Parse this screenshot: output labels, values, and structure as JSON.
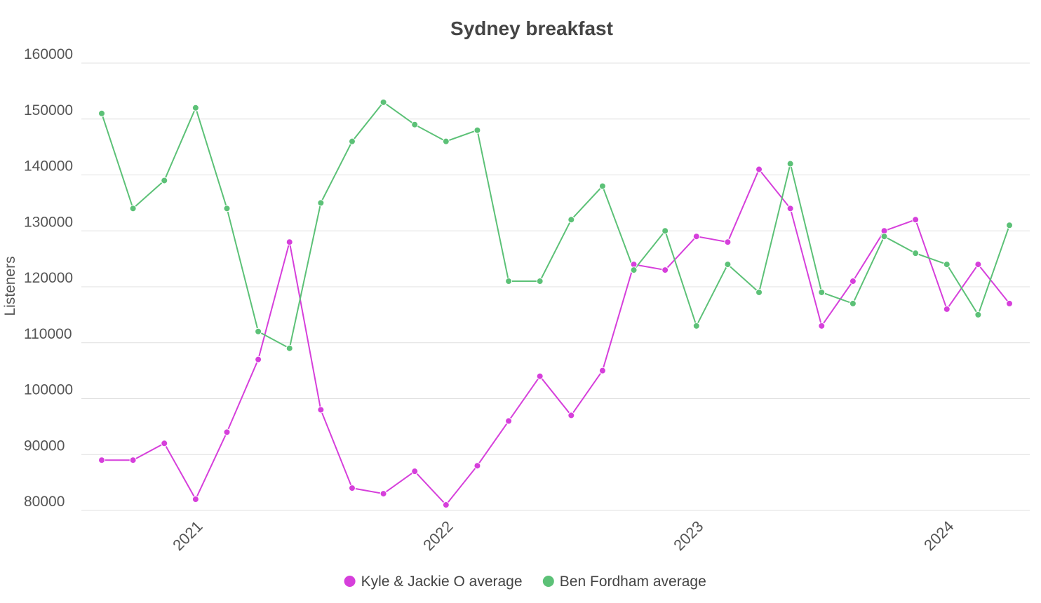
{
  "chart_data": {
    "type": "line",
    "title": "Sydney breakfast",
    "xlabel": "",
    "ylabel": "Listeners",
    "ylim": [
      80000,
      160000
    ],
    "yticks": [
      80000,
      90000,
      100000,
      110000,
      120000,
      130000,
      140000,
      150000,
      160000
    ],
    "xticks": [
      "2021",
      "2022",
      "2023",
      "2024"
    ],
    "xtick_positions": [
      3.25,
      11.25,
      19.25,
      27.25
    ],
    "x_range": [
      -0.65,
      29.65
    ],
    "legend_position": "bottom",
    "grid": true,
    "series": [
      {
        "name": "Kyle & Jackie O average",
        "color": "#d63fdb",
        "values": [
          89000,
          89000,
          92000,
          82000,
          94000,
          107000,
          128000,
          98000,
          84000,
          83000,
          87000,
          81000,
          88000,
          96000,
          104000,
          97000,
          105000,
          124000,
          123000,
          129000,
          128000,
          141000,
          134000,
          113000,
          121000,
          130000,
          132000,
          116000,
          124000,
          117000
        ]
      },
      {
        "name": "Ben Fordham average",
        "color": "#5cc177",
        "values": [
          151000,
          134000,
          139000,
          152000,
          134000,
          112000,
          109000,
          135000,
          146000,
          153000,
          149000,
          146000,
          148000,
          121000,
          121000,
          132000,
          138000,
          123000,
          130000,
          113000,
          124000,
          119000,
          142000,
          119000,
          117000,
          129000,
          126000,
          124000,
          115000,
          131000
        ]
      }
    ]
  }
}
